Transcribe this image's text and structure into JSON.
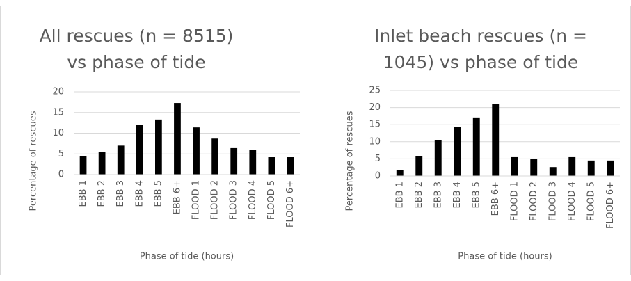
{
  "chart_data": [
    {
      "type": "bar",
      "title": "All rescues (n = 8515) vs phase of tide",
      "x_label": "Phase of tide (hours)",
      "y_label": "Percentage of rescues",
      "categories": [
        "EBB 1",
        "EBB 2",
        "EBB 3",
        "EBB 4",
        "EBB 5",
        "EBB 6+",
        "FLOOD 1",
        "FLOOD 2",
        "FLOOD 3",
        "FLOOD 4",
        "FLOOD 5",
        "FLOOD 6+"
      ],
      "values": [
        4.5,
        5.4,
        7,
        12.1,
        13.3,
        17.3,
        11.4,
        8.7,
        6.4,
        5.9,
        4.2,
        4.2
      ],
      "color": "#000000",
      "ylim": [
        0,
        20
      ],
      "yticks": [
        0,
        5,
        10,
        15,
        20
      ],
      "grid": true
    },
    {
      "type": "bar",
      "title": "Inlet beach rescues (n = 1045) vs phase of tide",
      "x_label": "Phase of tide (hours)",
      "y_label": "Percentage of rescues",
      "categories": [
        "EBB 1",
        "EBB 2",
        "EBB 3",
        "EBB 4",
        "EBB 5",
        "EBB 6+",
        "FLOOD 1",
        "FLOOD 2",
        "FLOOD 3",
        "FLOOD 4",
        "FLOOD 5",
        "FLOOD 6+"
      ],
      "values": [
        1.8,
        5.7,
        10.4,
        14.4,
        17.1,
        21.1,
        5.5,
        4.9,
        2.6,
        5.5,
        4.5,
        4.5
      ],
      "color": "#000000",
      "ylim": [
        0,
        25
      ],
      "yticks": [
        0,
        5,
        10,
        15,
        20,
        25
      ],
      "grid": true
    }
  ]
}
